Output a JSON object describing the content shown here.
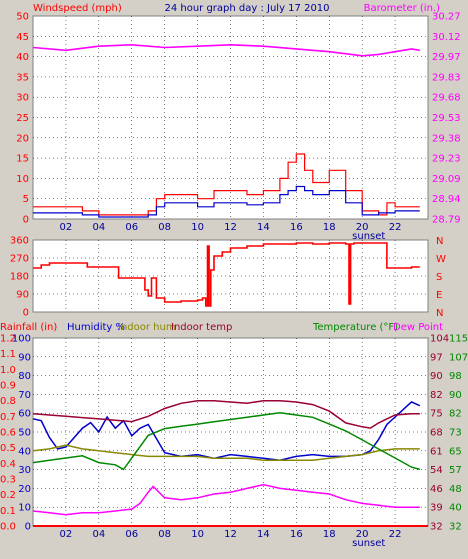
{
  "header": {
    "left": "Windspeed (mph)",
    "center": "24 hour graph day : July 17 2010",
    "right": "Barometer (in.)"
  },
  "colors": {
    "background": "#d4d0c8",
    "plot_bg": "#ffffff",
    "red": "#ff0000",
    "blue": "#0000cc",
    "magenta": "#ff00ff",
    "green": "#008800",
    "olive": "#888800",
    "darkred": "#990033",
    "navy": "#000099"
  },
  "chart_data": [
    {
      "type": "line",
      "panel": "wind-barometer",
      "title": "24 hour graph day : July 17 2010",
      "xlabel": "",
      "x_ticks": [
        "02",
        "04",
        "06",
        "08",
        "10",
        "12",
        "14",
        "16",
        "18",
        "20",
        "22"
      ],
      "x_marker": "sunset",
      "xlim": [
        0,
        24
      ],
      "left_axis": {
        "label": "Windspeed (mph)",
        "ticks": [
          0,
          5,
          10,
          15,
          20,
          25,
          30,
          35,
          40,
          45,
          50
        ],
        "ylim": [
          0,
          50
        ]
      },
      "right_axis": {
        "label": "Barometer (in.)",
        "ticks": [
          "28.79",
          "28.94",
          "29.09",
          "29.23",
          "29.38",
          "29.53",
          "29.68",
          "29.83",
          "29.97",
          "30.12",
          "30.27"
        ],
        "ylim": [
          28.79,
          30.27
        ]
      },
      "grid": true,
      "series": [
        {
          "name": "Windspeed (mph)",
          "color": "#ff0000",
          "axis": "left",
          "x": [
            0,
            1,
            2,
            3,
            4,
            5,
            6,
            7,
            7.5,
            8,
            9,
            10,
            11,
            12,
            13,
            14,
            15,
            15.5,
            16,
            16.5,
            17,
            18,
            19,
            20,
            21,
            21.5,
            22,
            23,
            23.5
          ],
          "y": [
            3,
            3,
            3,
            2,
            1,
            1,
            1,
            2,
            5,
            6,
            6,
            5,
            7,
            7,
            6,
            7,
            10,
            14,
            16,
            12,
            9,
            12,
            7,
            2,
            1,
            4,
            3,
            3,
            3
          ]
        },
        {
          "name": "Average windspeed",
          "color": "#0000cc",
          "axis": "left",
          "x": [
            0,
            1,
            2,
            3,
            4,
            5,
            6,
            7,
            7.5,
            8,
            9,
            10,
            11,
            12,
            13,
            14,
            15,
            15.5,
            16,
            16.5,
            17,
            18,
            19,
            20,
            21,
            22,
            23,
            23.5
          ],
          "y": [
            1.5,
            1.5,
            1.5,
            1,
            0.5,
            0.5,
            0.5,
            1,
            3,
            4,
            4,
            3,
            4,
            4,
            3.5,
            4,
            6,
            7,
            8,
            7,
            6,
            7,
            4,
            1,
            1.5,
            2,
            2,
            2
          ]
        },
        {
          "name": "Barometer (in.)",
          "color": "#ff00ff",
          "axis": "right",
          "x": [
            0,
            2,
            4,
            6,
            8,
            10,
            12,
            14,
            16,
            18,
            20,
            21,
            22,
            23,
            23.5
          ],
          "y": [
            30.04,
            30.02,
            30.05,
            30.06,
            30.04,
            30.05,
            30.06,
            30.05,
            30.03,
            30.01,
            29.98,
            29.99,
            30.01,
            30.03,
            30.02
          ]
        }
      ]
    },
    {
      "type": "line",
      "panel": "wind-direction",
      "left_axis": {
        "label": "",
        "ticks": [
          0,
          90,
          180,
          270,
          360
        ],
        "ylim": [
          0,
          360
        ]
      },
      "right_axis": {
        "label": "",
        "ticks": [
          "N",
          "E",
          "S",
          "W",
          "N"
        ]
      },
      "xlim": [
        0,
        24
      ],
      "grid": true,
      "series": [
        {
          "name": "Wind direction",
          "color": "#ff0000",
          "axis": "left",
          "x": [
            0,
            0.5,
            1,
            3,
            3.3,
            5,
            5.2,
            6.5,
            6.8,
            7.0,
            7.2,
            7.5,
            8,
            9,
            10,
            10.3,
            10.5,
            10.6,
            10.7,
            10.8,
            11,
            11.5,
            12,
            13,
            14,
            15,
            16,
            17,
            18,
            19,
            19.2,
            19.3,
            19.5,
            20,
            21,
            21.3,
            21.5,
            22,
            23,
            23.5
          ],
          "y": [
            220,
            235,
            245,
            245,
            225,
            225,
            170,
            170,
            110,
            80,
            170,
            70,
            50,
            55,
            60,
            70,
            30,
            330,
            30,
            210,
            280,
            300,
            320,
            330,
            340,
            340,
            345,
            340,
            345,
            340,
            40,
            340,
            345,
            345,
            345,
            345,
            220,
            220,
            225,
            225
          ]
        }
      ]
    },
    {
      "type": "line",
      "panel": "temperature-humidity",
      "x_ticks": [
        "02",
        "04",
        "06",
        "08",
        "10",
        "12",
        "14",
        "16",
        "18",
        "20",
        "22"
      ],
      "x_marker": "sunset",
      "xlim": [
        0,
        24
      ],
      "labels": {
        "rainfall": "Rainfall (in)",
        "humidity": "Humidity %",
        "indoor_hum": "Indoor hum",
        "indoor_temp": "Indoor temp",
        "temperature": "Temperature (°F)",
        "dew_point": "Dew Point"
      },
      "rain_axis": {
        "ticks": [
          "0.0",
          "0.1",
          "0.2",
          "0.3",
          "0.4",
          "0.5",
          "0.6",
          "0.7",
          "0.8",
          "0.9",
          "1.0",
          "1.1",
          "1.2"
        ],
        "ylim": [
          0,
          1.2
        ]
      },
      "humidity_axis": {
        "ticks": [
          0,
          10,
          20,
          30,
          40,
          50,
          60,
          70,
          80,
          90,
          100
        ],
        "ylim": [
          0,
          100
        ]
      },
      "temp_axis_a": {
        "ticks": [
          32,
          39,
          46,
          54,
          61,
          68,
          75,
          82,
          90,
          97,
          104
        ],
        "ylim": [
          32,
          104
        ]
      },
      "temp_axis_b": {
        "ticks": [
          32,
          40,
          48,
          57,
          65,
          73,
          82,
          90,
          98,
          107,
          115
        ],
        "ylim": [
          32,
          115
        ]
      },
      "grid": true,
      "series": [
        {
          "name": "Rainfall (in)",
          "color": "#ff0000",
          "axis": "humidity",
          "x": [
            0,
            24
          ],
          "y": [
            0,
            0
          ]
        },
        {
          "name": "Humidity %",
          "color": "#0000cc",
          "axis": "humidity",
          "x": [
            0,
            0.5,
            1,
            1.5,
            2,
            3,
            3.5,
            4,
            4.5,
            5,
            5.5,
            6,
            6.5,
            7,
            8,
            9,
            10,
            11,
            12,
            13,
            14,
            15,
            16,
            17,
            18,
            19,
            20,
            20.5,
            21,
            21.5,
            22,
            22.5,
            23,
            23.5
          ],
          "y": [
            57,
            56,
            47,
            41,
            42,
            52,
            55,
            50,
            58,
            52,
            56,
            48,
            52,
            54,
            39,
            37,
            38,
            36,
            38,
            37,
            36,
            35,
            37,
            38,
            37,
            37,
            38,
            40,
            46,
            54,
            58,
            62,
            66,
            64
          ]
        },
        {
          "name": "Indoor hum",
          "color": "#888800",
          "axis": "humidity",
          "x": [
            0,
            1,
            2,
            3,
            4,
            5,
            6,
            7,
            8,
            9,
            10,
            11,
            12,
            13,
            14,
            15,
            16,
            17,
            18,
            19,
            20,
            21,
            22,
            23,
            23.5
          ],
          "y": [
            40,
            41,
            43,
            41,
            40,
            39,
            38,
            37,
            37,
            37,
            37,
            36,
            36,
            36,
            35,
            35,
            35,
            35,
            36,
            37,
            38,
            40,
            41,
            41,
            41
          ]
        },
        {
          "name": "Indoor temp",
          "color": "#990033",
          "axis": "temp_a",
          "x": [
            0,
            1,
            2,
            3,
            4,
            5,
            6,
            7,
            8,
            9,
            10,
            11,
            12,
            13,
            14,
            15,
            16,
            17,
            18,
            19,
            20,
            20.5,
            21,
            22,
            23,
            23.5
          ],
          "y": [
            75,
            74.5,
            74,
            73.5,
            73,
            72.5,
            72,
            74,
            77,
            79,
            80,
            80,
            79.5,
            79,
            80,
            80,
            79.5,
            78.5,
            76,
            71.5,
            70,
            69.5,
            71.5,
            74.5,
            75,
            75
          ]
        },
        {
          "name": "Temperature (°F)",
          "color": "#008800",
          "axis": "temp_b",
          "x": [
            0,
            1,
            2,
            3,
            4,
            5,
            5.5,
            6,
            6.5,
            7,
            8,
            9,
            10,
            11,
            12,
            13,
            14,
            15,
            16,
            17,
            18,
            19,
            20,
            21,
            22,
            23,
            23.5
          ],
          "y": [
            60,
            61,
            62,
            63,
            60,
            59,
            57,
            62,
            67,
            72,
            75,
            76,
            77,
            78,
            79,
            80,
            81,
            82,
            81,
            80,
            77,
            74,
            70,
            66,
            62,
            58,
            57
          ]
        },
        {
          "name": "Dew Point",
          "color": "#ff00ff",
          "axis": "humidity",
          "x": [
            0,
            1,
            2,
            3,
            4,
            5,
            6,
            6.5,
            7,
            7.3,
            8,
            9,
            10,
            11,
            12,
            13,
            14,
            15,
            16,
            17,
            18,
            19,
            20,
            21,
            22,
            23,
            23.5
          ],
          "y": [
            8,
            7,
            6,
            7,
            7,
            8,
            9,
            12,
            18,
            21,
            15,
            14,
            15,
            17,
            18,
            20,
            22,
            20,
            19,
            18,
            17,
            14,
            12,
            11,
            10,
            10,
            10
          ]
        }
      ]
    }
  ]
}
